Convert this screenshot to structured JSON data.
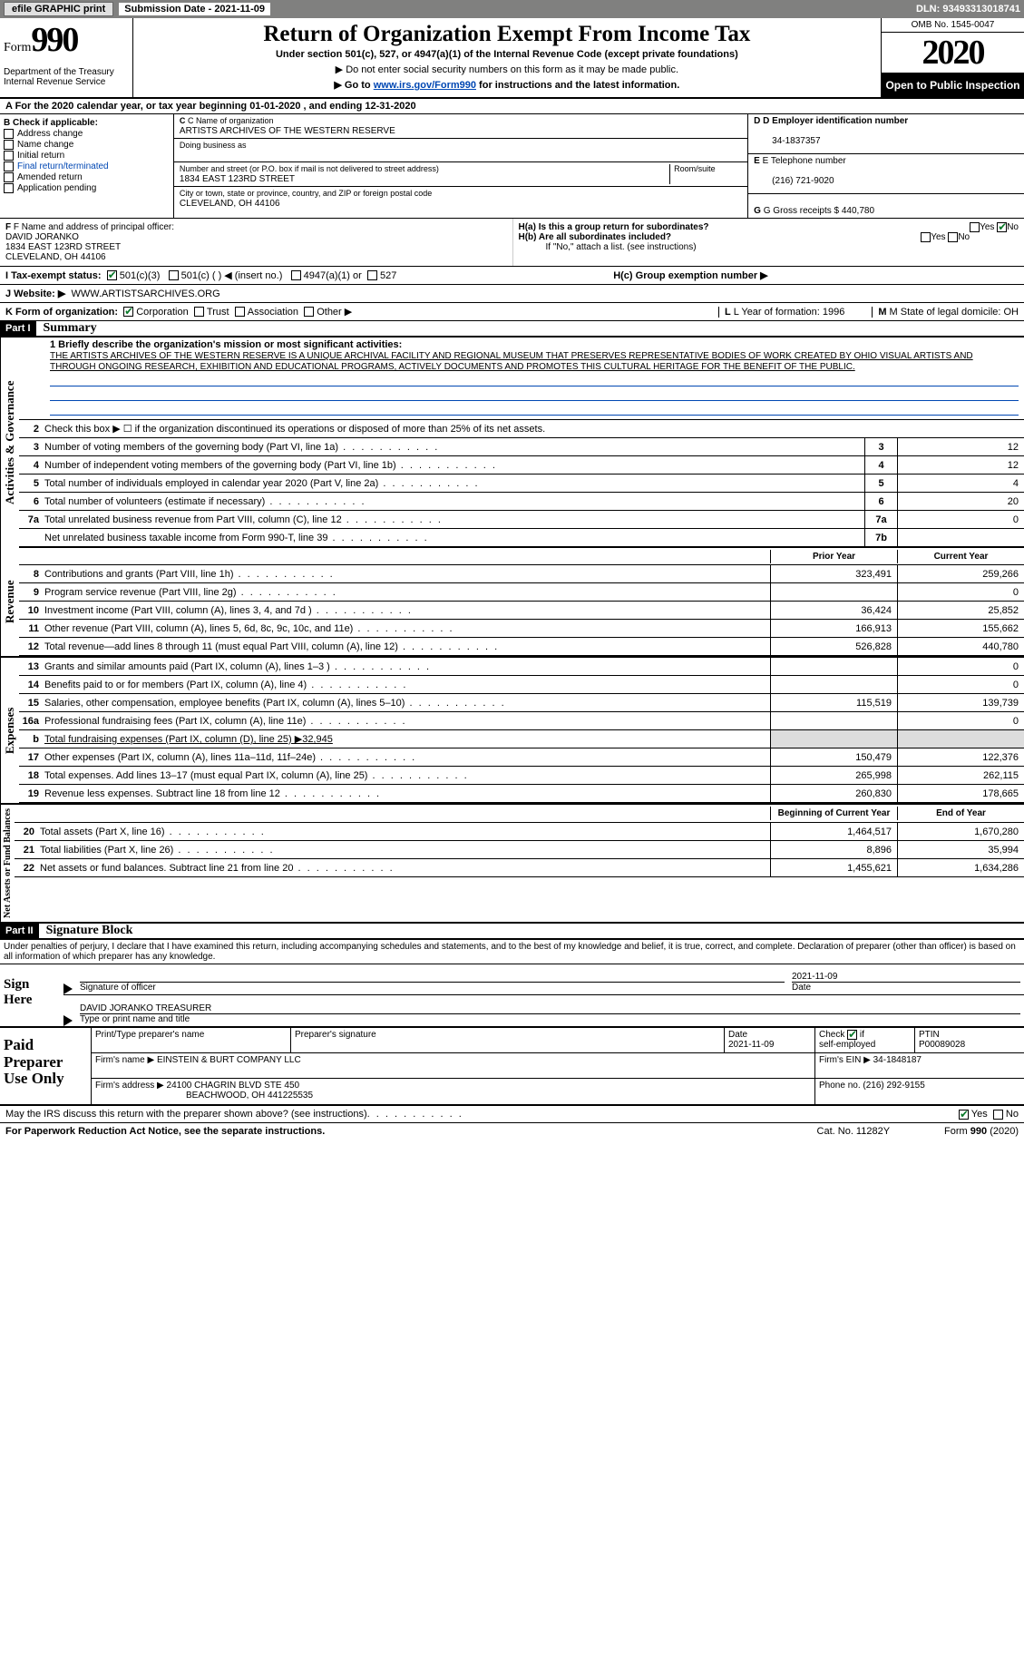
{
  "topbar": {
    "efile_btn": "efile GRAPHIC print",
    "sub_label": "Submission Date - 2021-11-09",
    "dln": "DLN: 93493313018741"
  },
  "header": {
    "form_word": "Form",
    "form_num": "990",
    "dept": "Department of the Treasury Internal Revenue Service",
    "title": "Return of Organization Exempt From Income Tax",
    "subtitle": "Under section 501(c), 527, or 4947(a)(1) of the Internal Revenue Code (except private foundations)",
    "note1": "▶ Do not enter social security numbers on this form as it may be made public.",
    "note2_pre": "▶ Go to ",
    "note2_link": "www.irs.gov/Form990",
    "note2_post": " for instructions and the latest information.",
    "omb": "OMB No. 1545-0047",
    "year": "2020",
    "inspection": "Open to Public Inspection"
  },
  "row_a": "A For the 2020 calendar year, or tax year beginning 01-01-2020   , and ending 12-31-2020",
  "sec_b": {
    "hdr": "B Check if applicable:",
    "items": [
      "Address change",
      "Name change",
      "Initial return",
      "Final return/terminated",
      "Amended return",
      "Application pending"
    ]
  },
  "sec_c": {
    "lbl": "C Name of organization",
    "name": "ARTISTS ARCHIVES OF THE WESTERN RESERVE",
    "dba_lbl": "Doing business as",
    "addr_lbl": "Number and street (or P.O. box if mail is not delivered to street address)",
    "room_lbl": "Room/suite",
    "addr": "1834 EAST 123RD STREET",
    "city_lbl": "City or town, state or province, country, and ZIP or foreign postal code",
    "city": "CLEVELAND, OH  44106"
  },
  "sec_d": {
    "lbl": "D Employer identification number",
    "val": "34-1837357"
  },
  "sec_e": {
    "lbl": "E Telephone number",
    "val": "(216) 721-9020"
  },
  "sec_g": {
    "lbl": "G Gross receipts $",
    "val": "440,780"
  },
  "sec_f": {
    "lbl": "F  Name and address of principal officer:",
    "name": "DAVID JORANKO",
    "addr1": "1834 EAST 123RD STREET",
    "addr2": "CLEVELAND, OH  44106"
  },
  "sec_h": {
    "a": "H(a)  Is this a group return for subordinates?",
    "b": "H(b)  Are all subordinates included?",
    "b_note": "If \"No,\" attach a list. (see instructions)",
    "c": "H(c)  Group exemption number ▶"
  },
  "row_i": {
    "lbl": "I   Tax-exempt status:",
    "opts": [
      "501(c)(3)",
      "501(c) (  ) ◀ (insert no.)",
      "4947(a)(1) or",
      "527"
    ]
  },
  "row_j": {
    "lbl": "J   Website: ▶",
    "val": "WWW.ARTISTSARCHIVES.ORG"
  },
  "row_k": {
    "lbl": "K Form of organization:",
    "opts": [
      "Corporation",
      "Trust",
      "Association",
      "Other ▶"
    ],
    "l": "L Year of formation: 1996",
    "m": "M State of legal domicile: OH"
  },
  "part1": {
    "num": "Part I",
    "title": "Summary"
  },
  "mission": {
    "lbl": "1  Briefly describe the organization's mission or most significant activities:",
    "txt": "THE ARTISTS ARCHIVES OF THE WESTERN RESERVE IS A UNIQUE ARCHIVAL FACILITY AND REGIONAL MUSEUM THAT PRESERVES REPRESENTATIVE BODIES OF WORK CREATED BY OHIO VISUAL ARTISTS AND THROUGH ONGOING RESEARCH, EXHIBITION AND EDUCATIONAL PROGRAMS, ACTIVELY DOCUMENTS AND PROMOTES THIS CULTURAL HERITAGE FOR THE BENEFIT OF THE PUBLIC."
  },
  "gov": {
    "l2": "Check this box ▶ ☐ if the organization discontinued its operations or disposed of more than 25% of its net assets.",
    "lines": [
      {
        "n": "3",
        "t": "Number of voting members of the governing body (Part VI, line 1a)",
        "b": "3",
        "v": "12"
      },
      {
        "n": "4",
        "t": "Number of independent voting members of the governing body (Part VI, line 1b)",
        "b": "4",
        "v": "12"
      },
      {
        "n": "5",
        "t": "Total number of individuals employed in calendar year 2020 (Part V, line 2a)",
        "b": "5",
        "v": "4"
      },
      {
        "n": "6",
        "t": "Total number of volunteers (estimate if necessary)",
        "b": "6",
        "v": "20"
      },
      {
        "n": "7a",
        "t": "Total unrelated business revenue from Part VIII, column (C), line 12",
        "b": "7a",
        "v": "0"
      },
      {
        "n": "",
        "t": "Net unrelated business taxable income from Form 990-T, line 39",
        "b": "7b",
        "v": ""
      }
    ]
  },
  "yr_hdr": {
    "prior": "Prior Year",
    "curr": "Current Year",
    "bcy": "Beginning of Current Year",
    "eoy": "End of Year"
  },
  "rev": [
    {
      "n": "8",
      "t": "Contributions and grants (Part VIII, line 1h)",
      "p": "323,491",
      "c": "259,266"
    },
    {
      "n": "9",
      "t": "Program service revenue (Part VIII, line 2g)",
      "p": "",
      "c": "0"
    },
    {
      "n": "10",
      "t": "Investment income (Part VIII, column (A), lines 3, 4, and 7d )",
      "p": "36,424",
      "c": "25,852"
    },
    {
      "n": "11",
      "t": "Other revenue (Part VIII, column (A), lines 5, 6d, 8c, 9c, 10c, and 11e)",
      "p": "166,913",
      "c": "155,662"
    },
    {
      "n": "12",
      "t": "Total revenue—add lines 8 through 11 (must equal Part VIII, column (A), line 12)",
      "p": "526,828",
      "c": "440,780"
    }
  ],
  "exp": [
    {
      "n": "13",
      "t": "Grants and similar amounts paid (Part IX, column (A), lines 1–3 )",
      "p": "",
      "c": "0"
    },
    {
      "n": "14",
      "t": "Benefits paid to or for members (Part IX, column (A), line 4)",
      "p": "",
      "c": "0"
    },
    {
      "n": "15",
      "t": "Salaries, other compensation, employee benefits (Part IX, column (A), lines 5–10)",
      "p": "115,519",
      "c": "139,739"
    },
    {
      "n": "16a",
      "t": "Professional fundraising fees (Part IX, column (A), line 11e)",
      "p": "",
      "c": "0"
    },
    {
      "n": "b",
      "t": "Total fundraising expenses (Part IX, column (D), line 25) ▶32,945",
      "p": "-",
      "c": "-"
    },
    {
      "n": "17",
      "t": "Other expenses (Part IX, column (A), lines 11a–11d, 11f–24e)",
      "p": "150,479",
      "c": "122,376"
    },
    {
      "n": "18",
      "t": "Total expenses. Add lines 13–17 (must equal Part IX, column (A), line 25)",
      "p": "265,998",
      "c": "262,115"
    },
    {
      "n": "19",
      "t": "Revenue less expenses. Subtract line 18 from line 12",
      "p": "260,830",
      "c": "178,665"
    }
  ],
  "net": [
    {
      "n": "20",
      "t": "Total assets (Part X, line 16)",
      "p": "1,464,517",
      "c": "1,670,280"
    },
    {
      "n": "21",
      "t": "Total liabilities (Part X, line 26)",
      "p": "8,896",
      "c": "35,994"
    },
    {
      "n": "22",
      "t": "Net assets or fund balances. Subtract line 21 from line 20",
      "p": "1,455,621",
      "c": "1,634,286"
    }
  ],
  "side": {
    "gov": "Activities & Governance",
    "rev": "Revenue",
    "exp": "Expenses",
    "net": "Net Assets or Fund Balances"
  },
  "part2": {
    "num": "Part II",
    "title": "Signature Block"
  },
  "decl": "Under penalties of perjury, I declare that I have examined this return, including accompanying schedules and statements, and to the best of my knowledge and belief, it is true, correct, and complete. Declaration of preparer (other than officer) is based on all information of which preparer has any knowledge.",
  "sign": {
    "lbl": "Sign Here",
    "sig_of": "Signature of officer",
    "date": "2021-11-09",
    "date_lbl": "Date",
    "name": "DAVID JORANKO  TREASURER",
    "name_lbl": "Type or print name and title"
  },
  "paid": {
    "lbl": "Paid Preparer Use Only",
    "prep_name_lbl": "Print/Type preparer's name",
    "prep_sig_lbl": "Preparer's signature",
    "date_lbl": "Date",
    "date": "2021-11-09",
    "chk_lbl": "Check ☑ if self-employed",
    "ptin_lbl": "PTIN",
    "ptin": "P00089028",
    "firm_name_lbl": "Firm's name    ▶",
    "firm_name": "EINSTEIN & BURT COMPANY LLC",
    "firm_ein_lbl": "Firm's EIN ▶",
    "firm_ein": "34-1848187",
    "firm_addr_lbl": "Firm's address ▶",
    "firm_addr1": "24100 CHAGRIN BLVD STE 450",
    "firm_addr2": "BEACHWOOD, OH  441225535",
    "phone_lbl": "Phone no.",
    "phone": "(216) 292-9155"
  },
  "footer": {
    "discuss": "May the IRS discuss this return with the preparer shown above? (see instructions)",
    "pra": "For Paperwork Reduction Act Notice, see the separate instructions.",
    "cat": "Cat. No. 11282Y",
    "form": "Form 990 (2020)"
  }
}
